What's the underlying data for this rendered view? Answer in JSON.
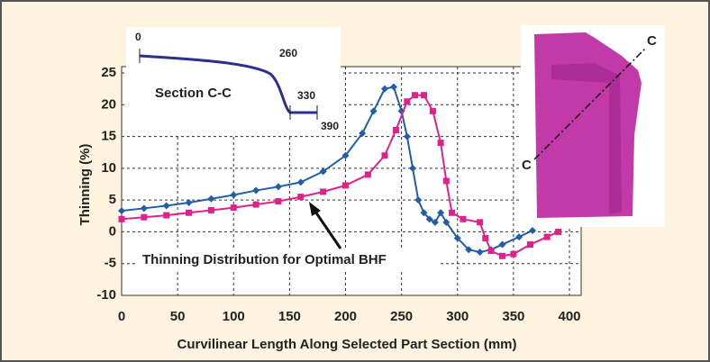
{
  "chart_data": {
    "type": "line",
    "x_label": "Curvilinear Length Along Selected Part Section (mm)",
    "y_label": "Thinning (%)",
    "annotation": "Thinning Distribution for Optimal BHF",
    "series": [
      {
        "color": "#1f5fa8",
        "marker": "diamond",
        "x": [
          0,
          20,
          40,
          60,
          80,
          100,
          120,
          140,
          160,
          180,
          200,
          215,
          225,
          235,
          243,
          250,
          255,
          260,
          265,
          270,
          275,
          280,
          285,
          290,
          300,
          310,
          320,
          330,
          340,
          355,
          367
        ],
        "values": [
          3.3,
          3.7,
          4.1,
          4.6,
          5.2,
          5.8,
          6.5,
          7.1,
          7.8,
          9.5,
          12,
          15.5,
          19,
          22.5,
          22.8,
          19,
          15,
          10,
          5,
          3,
          2,
          1.5,
          3,
          1.5,
          -1,
          -2.8,
          -3.2,
          -2.8,
          -2,
          -0.8,
          0.2
        ]
      },
      {
        "color": "#e0218a",
        "marker": "square",
        "x": [
          0,
          20,
          40,
          60,
          80,
          100,
          120,
          140,
          160,
          180,
          200,
          220,
          235,
          245,
          255,
          262,
          270,
          278,
          285,
          290,
          295,
          305,
          320,
          325,
          330,
          340,
          350,
          365,
          380,
          390
        ],
        "values": [
          2,
          2.3,
          2.6,
          3,
          3.4,
          3.8,
          4.3,
          4.8,
          5.5,
          6.3,
          7.3,
          9,
          12,
          16,
          20.5,
          21.5,
          21.5,
          19,
          14,
          8,
          3,
          2,
          1.5,
          -1,
          -3,
          -3.8,
          -3.5,
          -2,
          -0.8,
          0
        ]
      }
    ],
    "xlim": [
      0,
      400
    ],
    "ylim": [
      -10,
      25
    ],
    "xticks": [
      0,
      50,
      100,
      150,
      200,
      250,
      300,
      350,
      400
    ],
    "yticks": [
      -10,
      -5,
      0,
      5,
      10,
      15,
      20,
      25
    ],
    "grid": true
  },
  "inset": {
    "title": "Section C-C",
    "labels": [
      "0",
      "260",
      "330",
      "390"
    ]
  },
  "part_image": {
    "labels": [
      "C",
      "C"
    ]
  }
}
